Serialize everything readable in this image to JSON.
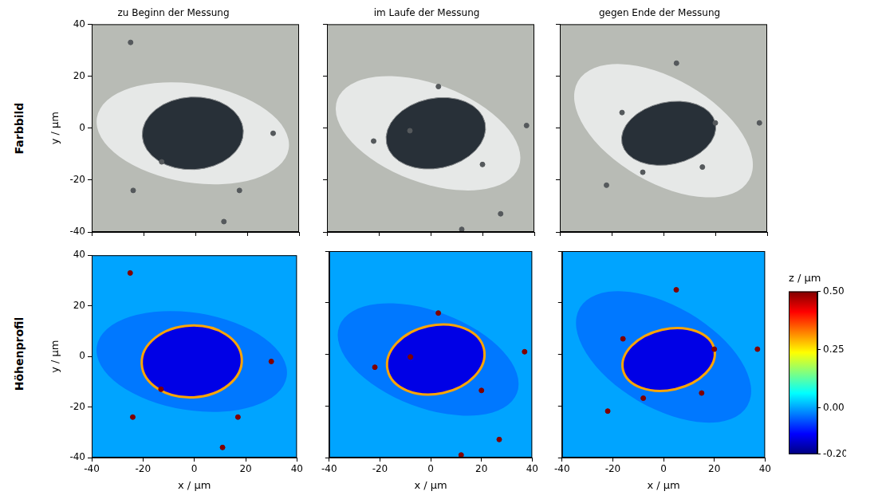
{
  "chart_data": [
    {
      "type": "image",
      "title": "zu Beginn der Messung",
      "ylabel": "y / µm",
      "row_label": "Farbbild",
      "xlim": [
        -40,
        40
      ],
      "ylim": [
        -40,
        40
      ],
      "xticks": [
        -40,
        -20,
        0,
        20,
        40
      ],
      "yticks": [
        -40,
        -20,
        0,
        20,
        40
      ],
      "tick_labels": "y",
      "grid": false,
      "colors": {
        "background": "#b8bbb5",
        "halo": "#e6e8e7",
        "drop": "#283038",
        "particles": "#55595c"
      },
      "halo": {
        "center": [
          -1,
          -2
        ],
        "axis_end": [
          36,
          -8
        ],
        "minor_radius": 19
      },
      "drop": {
        "center": [
          -1,
          -2
        ],
        "axis_end": [
          18.5,
          -1
        ],
        "minor_radius": 14
      },
      "particles": {
        "x": [
          -25,
          30,
          11,
          17,
          -13,
          -24
        ],
        "y": [
          33,
          -2,
          -36,
          -24,
          -13,
          -24
        ]
      }
    },
    {
      "type": "image",
      "title": "im Laufe der Messung",
      "xlim": [
        -40,
        40
      ],
      "ylim": [
        -40,
        40
      ],
      "xticks": [
        -40,
        -20,
        0,
        20,
        40
      ],
      "yticks": [
        -40,
        -20,
        0,
        20,
        40
      ],
      "tick_labels": false,
      "grid": false,
      "colors": {
        "background": "#b8bbb5",
        "halo": "#e6e8e7",
        "drop": "#283038",
        "particles": "#55595c"
      },
      "halo": {
        "center": [
          -1,
          -2
        ],
        "axis_end": [
          34,
          -15
        ],
        "minor_radius": 19
      },
      "drop": {
        "center": [
          2,
          -2
        ],
        "axis_end": [
          21,
          2
        ],
        "minor_radius": 13.5
      },
      "particles": {
        "x": [
          -22,
          37,
          27,
          12,
          -8,
          3,
          20
        ],
        "y": [
          -5,
          1,
          -33,
          -39,
          -1,
          16,
          -14
        ]
      }
    },
    {
      "type": "image",
      "title": "gegen Ende der Messung",
      "xlim": [
        -40,
        40
      ],
      "ylim": [
        -40,
        40
      ],
      "xticks": [
        -40,
        -20,
        0,
        20,
        40
      ],
      "yticks": [
        -40,
        -20,
        0,
        20,
        40
      ],
      "tick_labels": false,
      "grid": false,
      "colors": {
        "background": "#b8bbb5",
        "halo": "#e6e8e7",
        "drop": "#283038",
        "particles": "#55595c"
      },
      "halo": {
        "center": [
          0,
          -1
        ],
        "axis_end": [
          33,
          -20
        ],
        "minor_radius": 20
      },
      "drop": {
        "center": [
          2,
          -2
        ],
        "axis_end": [
          20,
          2
        ],
        "minor_radius": 12
      },
      "particles": {
        "x": [
          -16,
          37,
          -8,
          5,
          20,
          -22,
          15
        ],
        "y": [
          6,
          2,
          -17,
          25,
          2,
          -22,
          -15
        ]
      }
    },
    {
      "type": "heatmap",
      "xlabel": "x / µm",
      "ylabel": "y / µm",
      "row_label": "Höhenprofil",
      "xlim": [
        -40,
        40
      ],
      "ylim": [
        -40,
        40
      ],
      "xticks": [
        -40,
        -20,
        0,
        20,
        40
      ],
      "yticks": [
        -40,
        -20,
        0,
        20,
        40
      ],
      "tick_labels": true,
      "grid": false,
      "z": {
        "background": 0.0,
        "halo": -0.03,
        "drop": -0.13,
        "rim": 0.3,
        "particles": 0.5
      },
      "halo": {
        "center": [
          -1,
          -2
        ],
        "axis_end": [
          36,
          -8
        ],
        "minor_radius": 19
      },
      "drop": {
        "center": [
          -1,
          -2
        ],
        "axis_end": [
          18.5,
          -1
        ],
        "minor_radius": 14
      },
      "particles": {
        "x": [
          -25,
          30,
          11,
          17,
          -13,
          -24
        ],
        "y": [
          33,
          -2,
          -36,
          -24,
          -13,
          -24
        ]
      }
    },
    {
      "type": "heatmap",
      "xlabel": "x / µm",
      "xlim": [
        -40,
        40
      ],
      "ylim": [
        -40,
        40
      ],
      "xticks": [
        -40,
        -20,
        0,
        20,
        40
      ],
      "yticks": [
        -40,
        -20,
        0,
        20,
        40
      ],
      "tick_labels": "x",
      "grid": false,
      "z": {
        "background": 0.0,
        "halo": -0.03,
        "drop": -0.13,
        "rim": 0.3,
        "particles": 0.5
      },
      "halo": {
        "center": [
          -1,
          -2
        ],
        "axis_end": [
          34,
          -15
        ],
        "minor_radius": 19
      },
      "drop": {
        "center": [
          2,
          -2
        ],
        "axis_end": [
          21,
          2
        ],
        "minor_radius": 13.5
      },
      "particles": {
        "x": [
          -22,
          37,
          27,
          12,
          -8,
          3,
          20
        ],
        "y": [
          -5,
          1,
          -33,
          -39,
          -1,
          16,
          -14
        ]
      }
    },
    {
      "type": "heatmap",
      "xlabel": "x / µm",
      "xlim": [
        -40,
        40
      ],
      "ylim": [
        -40,
        40
      ],
      "xticks": [
        -40,
        -20,
        0,
        20,
        40
      ],
      "yticks": [
        -40,
        -20,
        0,
        20,
        40
      ],
      "tick_labels": "x",
      "grid": false,
      "z": {
        "background": 0.0,
        "halo": -0.03,
        "drop": -0.13,
        "rim": 0.3,
        "particles": 0.5
      },
      "halo": {
        "center": [
          0,
          -1
        ],
        "axis_end": [
          33,
          -20
        ],
        "minor_radius": 20
      },
      "drop": {
        "center": [
          2,
          -2
        ],
        "axis_end": [
          20,
          2
        ],
        "minor_radius": 12
      },
      "particles": {
        "x": [
          -16,
          37,
          -8,
          5,
          20,
          -22,
          15
        ],
        "y": [
          6,
          2,
          -17,
          25,
          2,
          -22,
          -15
        ]
      },
      "colorbar": {
        "label": "z / µm",
        "range": [
          -0.2,
          0.5
        ],
        "ticks": [
          {
            "value": -0.2,
            "label": "-0.20"
          },
          {
            "value": 0,
            "label": "0.00"
          },
          {
            "value": 0.25,
            "label": "0.25"
          },
          {
            "value": 0.5,
            "label": "0.50"
          }
        ]
      }
    }
  ]
}
